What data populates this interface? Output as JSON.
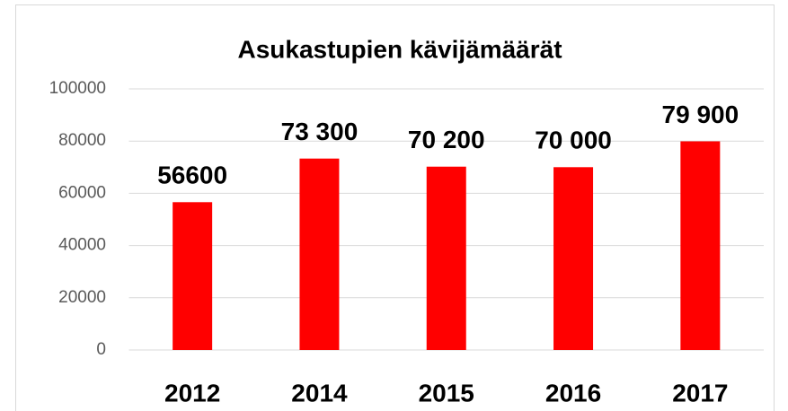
{
  "chart_data": {
    "type": "bar",
    "title": "Asukastupien kävijämäärät",
    "categories": [
      "2012",
      "2014",
      "2015",
      "2016",
      "2017"
    ],
    "values": [
      56600,
      73300,
      70200,
      70000,
      79900
    ],
    "value_labels": [
      "56600",
      "73 300",
      "70 200",
      "70 000",
      "79 900"
    ],
    "color": "#ff0000",
    "ylim": [
      0,
      100000
    ],
    "yticks": [
      0,
      20000,
      40000,
      60000,
      80000,
      100000
    ],
    "grid": true
  }
}
